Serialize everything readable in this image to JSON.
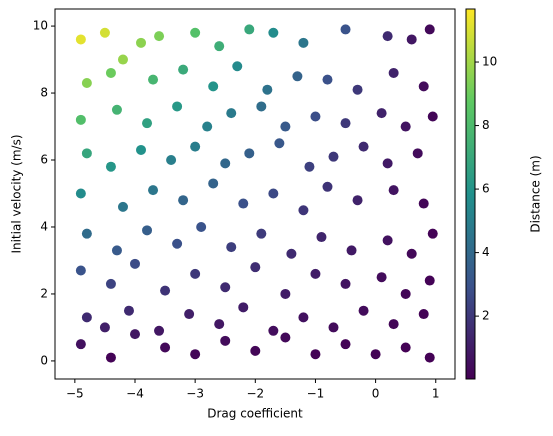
{
  "chart_data": {
    "type": "scatter",
    "xlabel": "Drag coefficient",
    "ylabel": "Initial velocity (m/s)",
    "colorbar_label": "Distance (m)",
    "colormap": "viridis",
    "xlim": [
      -5.33,
      1.32
    ],
    "ylim": [
      -0.54,
      10.51
    ],
    "clim": [
      0.02,
      11.67
    ],
    "xticks": [
      {
        "value": -5,
        "label": "−5"
      },
      {
        "value": -4,
        "label": "−4"
      },
      {
        "value": -3,
        "label": "−3"
      },
      {
        "value": -2,
        "label": "−2"
      },
      {
        "value": -1,
        "label": "−1"
      },
      0,
      1
    ],
    "yticks": [
      0,
      2,
      4,
      6,
      8,
      10
    ],
    "cticks": [
      2,
      4,
      6,
      8,
      10
    ],
    "x": [
      -4.9,
      -4.5,
      -4.2,
      -3.9,
      -3.6,
      -3.0,
      -2.6,
      -2.1,
      -1.7,
      -1.2,
      -0.5,
      0.2,
      0.6,
      0.9,
      -4.8,
      -4.4,
      -3.7,
      -3.2,
      -2.7,
      -2.3,
      -1.8,
      -1.3,
      -0.8,
      -0.3,
      0.3,
      0.8,
      -4.9,
      -4.3,
      -3.8,
      -3.3,
      -2.8,
      -2.4,
      -1.9,
      -1.5,
      -1.0,
      -0.5,
      0.1,
      0.5,
      0.95,
      -4.8,
      -4.4,
      -3.9,
      -3.4,
      -3.0,
      -2.5,
      -2.1,
      -1.6,
      -1.1,
      -0.7,
      -0.2,
      0.2,
      0.7,
      -4.9,
      -4.2,
      -3.7,
      -3.2,
      -2.7,
      -2.2,
      -1.7,
      -1.2,
      -0.8,
      -0.3,
      0.3,
      0.8,
      -4.8,
      -4.3,
      -3.8,
      -3.3,
      -2.9,
      -2.4,
      -1.9,
      -1.4,
      -0.9,
      -0.4,
      0.2,
      0.6,
      0.95,
      -4.9,
      -4.4,
      -4.0,
      -3.5,
      -3.0,
      -2.5,
      -2.0,
      -1.5,
      -1.0,
      -0.5,
      0.1,
      0.5,
      0.9,
      -4.8,
      -4.5,
      -4.1,
      -3.6,
      -3.1,
      -2.6,
      -2.2,
      -1.7,
      -1.2,
      -0.7,
      -0.2,
      0.3,
      0.8,
      -4.9,
      -4.4,
      -4.0,
      -3.5,
      -3.0,
      -2.5,
      -2.0,
      -1.5,
      -1.0,
      -0.5,
      0.0,
      0.5,
      0.9
    ],
    "values": [
      9.6,
      9.8,
      9.0,
      9.5,
      9.7,
      9.8,
      9.4,
      9.9,
      9.8,
      9.5,
      9.9,
      9.7,
      9.6,
      9.9,
      8.3,
      8.6,
      8.4,
      8.7,
      8.2,
      8.8,
      8.1,
      8.5,
      8.4,
      8.1,
      8.6,
      8.2,
      7.2,
      7.5,
      7.1,
      7.6,
      7.0,
      7.4,
      7.6,
      7.0,
      7.3,
      7.1,
      7.4,
      7.0,
      7.3,
      6.2,
      5.8,
      6.3,
      6.0,
      6.4,
      5.9,
      6.2,
      6.5,
      5.8,
      6.1,
      6.4,
      5.9,
      6.2,
      5.0,
      4.6,
      5.1,
      4.8,
      5.3,
      4.7,
      5.0,
      4.5,
      5.2,
      4.8,
      5.1,
      4.7,
      3.8,
      3.3,
      3.9,
      3.5,
      4.0,
      3.4,
      3.8,
      3.2,
      3.7,
      3.3,
      3.6,
      3.2,
      3.8,
      2.7,
      2.3,
      2.9,
      2.1,
      2.6,
      2.2,
      2.8,
      2.0,
      2.6,
      2.3,
      2.5,
      2.0,
      2.4,
      1.3,
      1.0,
      1.5,
      0.9,
      1.4,
      1.1,
      1.6,
      0.9,
      1.3,
      1.0,
      1.5,
      1.1,
      1.4,
      0.5,
      0.1,
      0.8,
      0.4,
      0.2,
      0.6,
      0.3,
      0.7,
      0.2,
      0.5,
      0.2,
      0.4,
      0.1
    ],
    "color_values": [
      11.2,
      10.9,
      9.8,
      9.6,
      9.3,
      8.3,
      7.3,
      7.0,
      5.6,
      4.6,
      3.0,
      1.5,
      0.8,
      0.3,
      9.5,
      9.0,
      7.7,
      7.1,
      6.0,
      5.5,
      4.4,
      3.7,
      2.9,
      2.0,
      1.2,
      0.4,
      8.2,
      7.6,
      6.6,
      6.2,
      5.1,
      4.8,
      4.2,
      3.3,
      2.8,
      2.0,
      1.2,
      0.7,
      0.2,
      6.9,
      6.1,
      5.9,
      5.0,
      4.9,
      3.9,
      3.6,
      3.2,
      2.3,
      2.0,
      1.5,
      0.9,
      0.4,
      5.6,
      4.6,
      4.6,
      3.8,
      3.7,
      2.9,
      2.6,
      1.9,
      1.8,
      1.2,
      0.7,
      0.2,
      4.1,
      3.3,
      3.5,
      2.9,
      3.0,
      2.2,
      2.1,
      1.5,
      1.3,
      0.9,
      0.6,
      0.3,
      0.1,
      3.0,
      2.4,
      2.7,
      1.8,
      2.0,
      1.5,
      1.6,
      1.0,
      1.0,
      0.7,
      0.4,
      0.2,
      0.1,
      1.5,
      1.1,
      1.5,
      0.8,
      1.1,
      0.8,
      1.0,
      0.5,
      0.6,
      0.4,
      0.4,
      0.2,
      0.1,
      0.6,
      0.1,
      0.8,
      0.3,
      0.2,
      0.4,
      0.2,
      0.3,
      0.1,
      0.1,
      0.05,
      0.05,
      0.05
    ]
  }
}
